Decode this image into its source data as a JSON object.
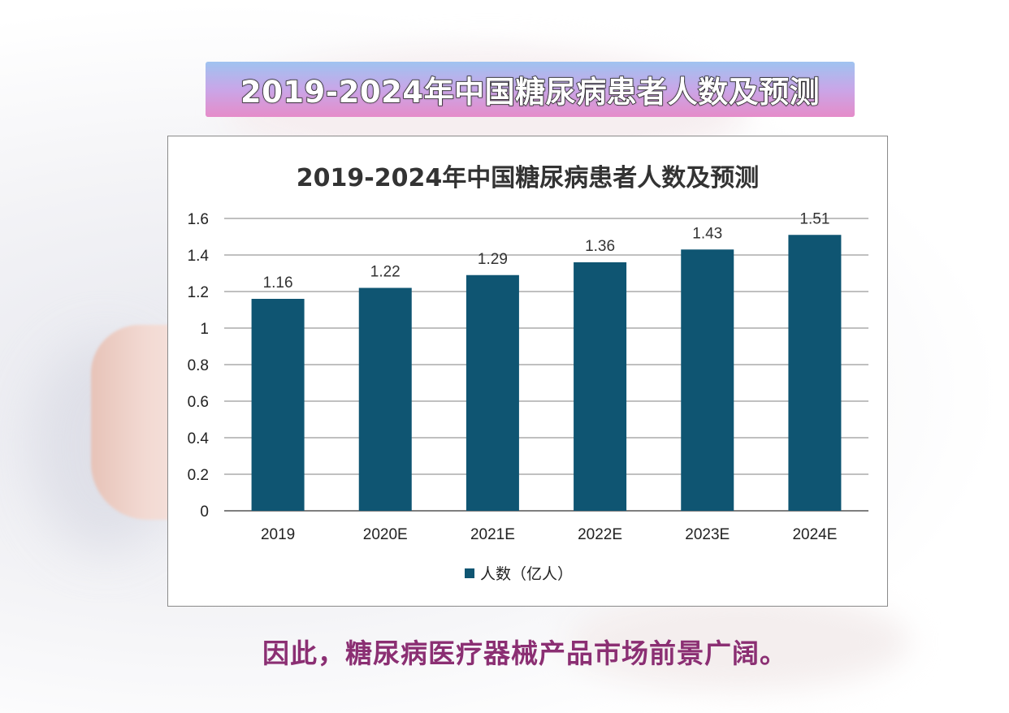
{
  "banner": {
    "title": "2019-2024年中国糖尿病患者人数及预测"
  },
  "caption": "因此，糖尿病医疗器械产品市场前景广阔。",
  "colors": {
    "bar": "#0f5572",
    "caption": "#8b2f73",
    "grid": "#9a9a9a"
  },
  "chart_data": {
    "type": "bar",
    "title": "2019-2024年中国糖尿病患者人数及预测",
    "categories": [
      "2019",
      "2020E",
      "2021E",
      "2022E",
      "2023E",
      "2024E"
    ],
    "series": [
      {
        "name": "人数（亿人）",
        "values": [
          1.16,
          1.22,
          1.29,
          1.36,
          1.43,
          1.51
        ]
      }
    ],
    "data_labels": [
      "1.16",
      "1.22",
      "1.29",
      "1.36",
      "1.43",
      "1.51"
    ],
    "yticks": [
      "0",
      "0.2",
      "0.4",
      "0.6",
      "0.8",
      "1",
      "1.2",
      "1.4",
      "1.6"
    ],
    "ylim": [
      0,
      1.6
    ],
    "grid": true,
    "legend": "bottom",
    "xlabel": "",
    "ylabel": ""
  }
}
